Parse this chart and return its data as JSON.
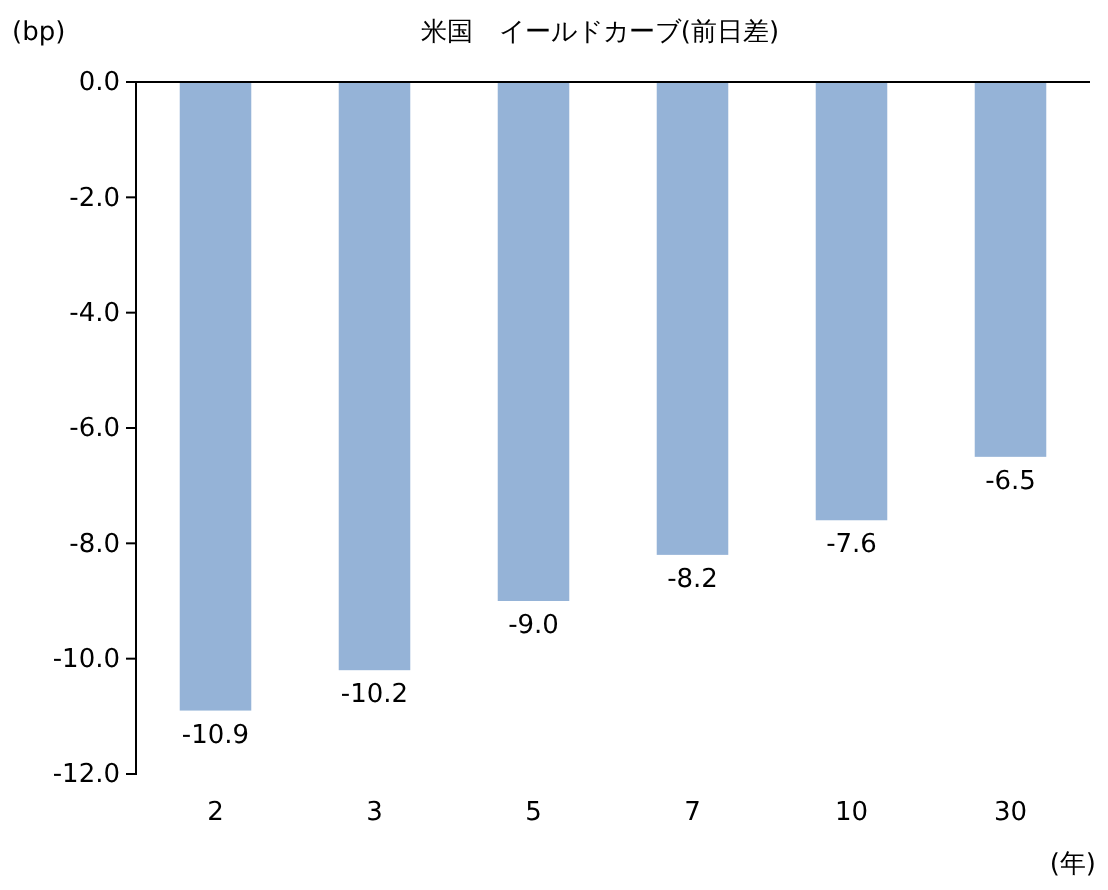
{
  "chart_data": {
    "type": "bar",
    "title": "米国　イールドカーブ(前日差)",
    "ylabel": "(bp)",
    "xlabel": "(年)",
    "categories": [
      "2",
      "3",
      "5",
      "7",
      "10",
      "30"
    ],
    "values": [
      -10.9,
      -10.2,
      -9.0,
      -8.2,
      -7.6,
      -6.5
    ],
    "value_labels": [
      "-10.9",
      "-10.2",
      "-9.0",
      "-8.2",
      "-7.6",
      "-6.5"
    ],
    "color": "#95b3d7",
    "ylim": [
      -12,
      0
    ],
    "yticks": [
      {
        "value": 0,
        "label": "0.0"
      },
      {
        "value": -2,
        "label": "-2.0"
      },
      {
        "value": -4,
        "label": "-4.0"
      },
      {
        "value": -6,
        "label": "-6.0"
      },
      {
        "value": -8,
        "label": "-8.0"
      },
      {
        "value": -10,
        "label": "-10.0"
      },
      {
        "value": -12,
        "label": "-12.0"
      }
    ],
    "grid": false
  }
}
